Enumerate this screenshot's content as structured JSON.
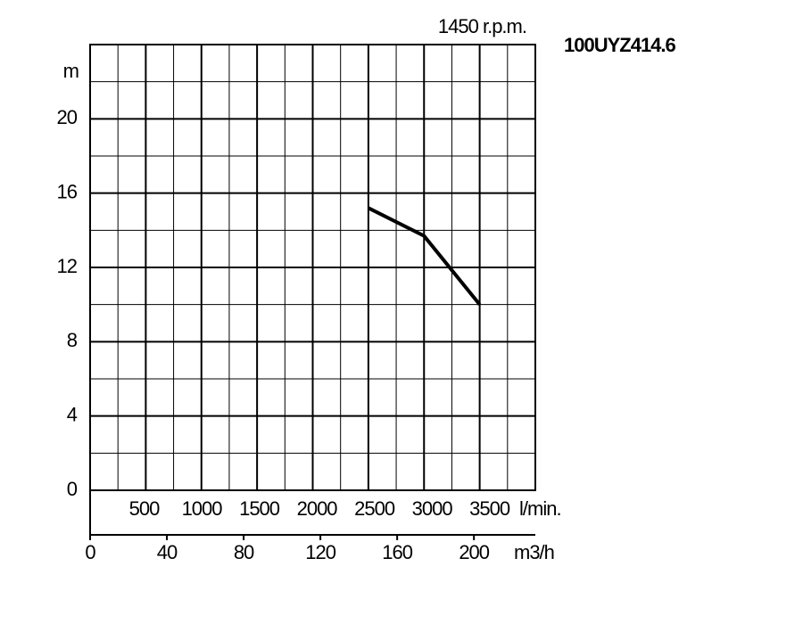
{
  "chart_data": {
    "type": "line",
    "title": "100UYZ414.6",
    "subtitle": "1450 r.p.m.",
    "y_label": "m",
    "x_label": "m3/h",
    "x2_label": "l/min.",
    "x": [
      145,
      174,
      203
    ],
    "series": [
      {
        "name": "100UYZ414.6",
        "color": "#000000",
        "values": [
          15.2,
          13.7,
          10.0
        ]
      }
    ],
    "xlim": [
      0,
      232
    ],
    "xticks": [
      0,
      40,
      80,
      120,
      160,
      200
    ],
    "x2lim": [
      0,
      3867
    ],
    "x2ticks": [
      500,
      1000,
      1500,
      2000,
      2500,
      3000,
      3500
    ],
    "ylim": [
      0,
      24
    ],
    "yticks": [
      0,
      4,
      8,
      12,
      16,
      20
    ],
    "grid": true
  }
}
